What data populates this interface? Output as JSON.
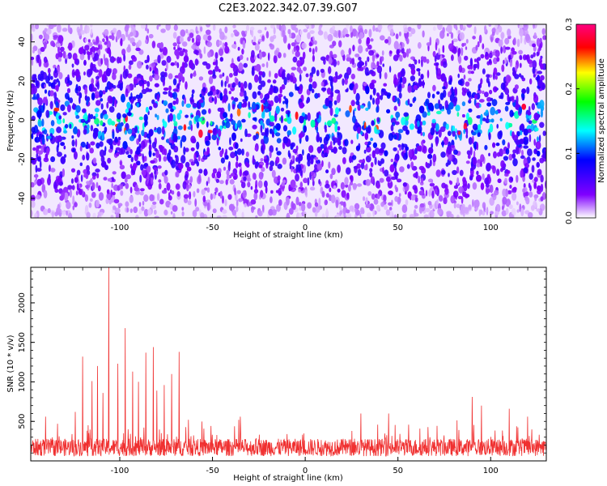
{
  "chart_data": [
    {
      "type": "heatmap",
      "title": "C2E3.2022.342.07.39.G07",
      "xlabel": "Height of straight line (km)",
      "ylabel": "Frequency (Hz)",
      "xlim": [
        -148,
        130
      ],
      "ylim": [
        -50,
        49
      ],
      "xticks": [
        -100,
        -50,
        0,
        50,
        100
      ],
      "yticks": [
        -40,
        -20,
        0,
        20,
        40
      ],
      "colorbar": {
        "label": "Normalized spectral amplitude",
        "range": [
          0,
          0.3
        ],
        "ticks": [
          "0.0",
          "0.1",
          "0.2",
          "0.3"
        ],
        "colors": [
          "#ffffff",
          "#8000ff",
          "#0000ff",
          "#00ffff",
          "#00ff00",
          "#ffff00",
          "#ff0000",
          "#ff0080"
        ]
      },
      "band": {
        "center_hz": 0,
        "half_width_hz": 10
      },
      "grid": false
    },
    {
      "type": "line",
      "xlabel": "Height of straight line (km)",
      "ylabel": "SNR (10 * v/v)",
      "xlim": [
        -148,
        130
      ],
      "ylim": [
        0,
        2450
      ],
      "xticks": [
        -100,
        -50,
        0,
        50,
        100
      ],
      "yticks": [
        500,
        1000,
        1500,
        2000
      ],
      "color": "#f03030",
      "baseline": 200,
      "peaks": [
        {
          "x": -106,
          "y": 2450
        },
        {
          "x": -97,
          "y": 1680
        },
        {
          "x": -120,
          "y": 1320
        },
        {
          "x": -82,
          "y": 1440
        },
        {
          "x": -86,
          "y": 1370
        },
        {
          "x": -68,
          "y": 1380
        },
        {
          "x": -101,
          "y": 1230
        },
        {
          "x": -112,
          "y": 1200
        },
        {
          "x": -93,
          "y": 1130
        },
        {
          "x": -72,
          "y": 1100
        },
        {
          "x": -76,
          "y": 960
        },
        {
          "x": -90,
          "y": 1000
        },
        {
          "x": -115,
          "y": 1010
        },
        {
          "x": -80,
          "y": 890
        },
        {
          "x": -109,
          "y": 860
        },
        {
          "x": -124,
          "y": 620
        },
        {
          "x": -63,
          "y": 520
        },
        {
          "x": 90,
          "y": 810
        },
        {
          "x": 30,
          "y": 600
        },
        {
          "x": 45,
          "y": 600
        },
        {
          "x": 95,
          "y": 700
        },
        {
          "x": 110,
          "y": 660
        },
        {
          "x": 120,
          "y": 560
        },
        {
          "x": -35,
          "y": 560
        },
        {
          "x": -140,
          "y": 560
        }
      ],
      "grid": false
    }
  ]
}
